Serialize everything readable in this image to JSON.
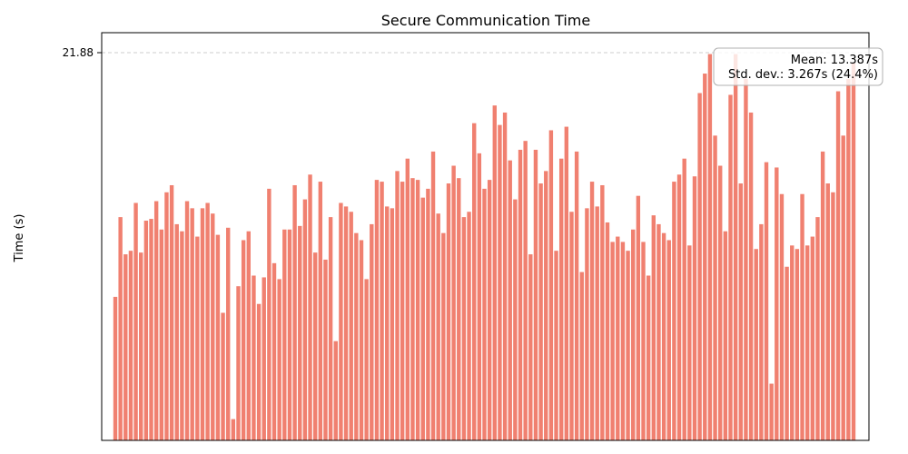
{
  "chart_data": {
    "type": "bar",
    "title": "Secure Communication Time",
    "xlabel": "",
    "ylabel": "Time (s)",
    "bar_color": "#f08070",
    "reference_line": {
      "value": 21.88,
      "label": "21.88",
      "style": "dashed",
      "color": "#cccccc"
    },
    "ylim": [
      0,
      21.88
    ],
    "y_ticks": [
      "21.88"
    ],
    "x_ticks": [],
    "stats_box": {
      "mean_label": "Mean: 13.387s",
      "std_label": "Std. dev.: 3.267s (24.4%)",
      "placement": "top-right"
    },
    "values": [
      8.1,
      12.6,
      10.5,
      10.7,
      13.4,
      10.6,
      12.4,
      12.5,
      13.5,
      11.9,
      14.0,
      14.4,
      12.2,
      11.8,
      13.5,
      13.1,
      11.5,
      13.1,
      13.4,
      12.8,
      11.6,
      7.2,
      12.0,
      1.2,
      8.7,
      11.3,
      11.8,
      9.3,
      7.7,
      9.2,
      14.2,
      10.0,
      9.1,
      11.9,
      11.9,
      14.4,
      12.1,
      13.6,
      15.0,
      10.6,
      14.6,
      10.2,
      12.6,
      5.6,
      13.4,
      13.2,
      12.9,
      11.7,
      11.3,
      9.1,
      12.2,
      14.7,
      14.6,
      13.2,
      13.1,
      15.2,
      14.6,
      15.9,
      14.8,
      14.7,
      13.7,
      14.2,
      16.3,
      12.8,
      11.7,
      14.5,
      15.5,
      14.8,
      12.6,
      12.9,
      17.9,
      16.2,
      14.2,
      14.7,
      18.9,
      17.8,
      18.5,
      15.8,
      13.6,
      16.4,
      16.9,
      10.5,
      16.4,
      14.5,
      15.2,
      17.5,
      10.7,
      15.9,
      17.7,
      12.9,
      16.3,
      9.5,
      13.1,
      14.6,
      13.2,
      14.4,
      12.3,
      11.2,
      11.5,
      11.2,
      10.7,
      11.9,
      13.8,
      11.2,
      9.3,
      12.7,
      12.2,
      11.7,
      11.3,
      14.6,
      15.0,
      15.9,
      11.0,
      14.9,
      19.6,
      20.7,
      21.8,
      17.2,
      15.5,
      11.8,
      19.5,
      21.8,
      14.5,
      20.4,
      18.5,
      10.8,
      12.2,
      15.7,
      3.2,
      15.4,
      13.9,
      9.8,
      11.0,
      10.8,
      13.9,
      11.0,
      11.5,
      12.6,
      16.3,
      14.5,
      14.0,
      19.7,
      17.2,
      20.4,
      21.3
    ]
  }
}
